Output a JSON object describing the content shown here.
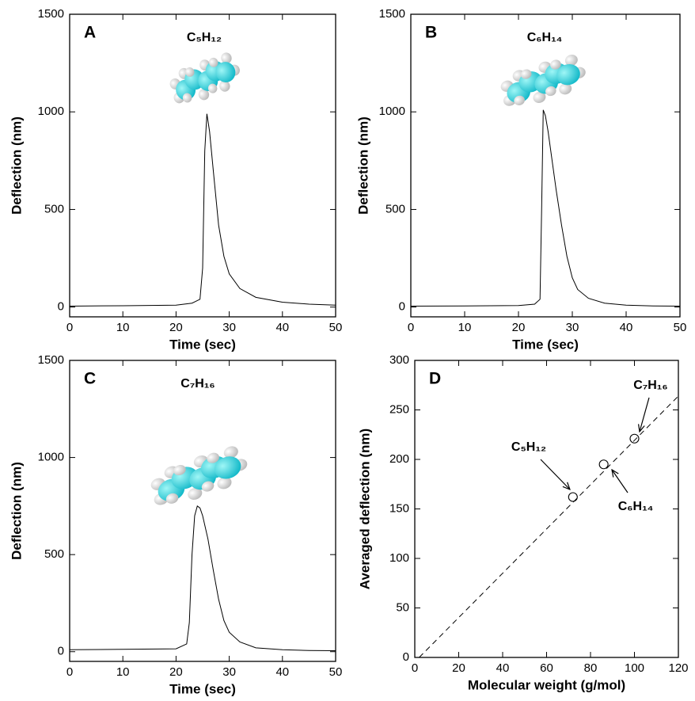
{
  "chart_data": [
    {
      "type": "line",
      "label": "A",
      "annotation": "C₅H₁₂",
      "xlabel": "Time (sec)",
      "ylabel": "Deflection (nm)",
      "color": "#000000",
      "x": [
        0,
        10,
        20,
        23,
        24.5,
        25,
        25.4,
        25.8,
        26.3,
        27,
        28,
        29,
        30,
        32,
        35,
        40,
        45,
        50
      ],
      "values": [
        5,
        7,
        10,
        20,
        40,
        200,
        800,
        990,
        900,
        700,
        420,
        260,
        170,
        95,
        50,
        25,
        15,
        10
      ],
      "xlim": [
        0,
        50
      ],
      "xticks": [
        0,
        10,
        20,
        30,
        40,
        50
      ],
      "ylim": [
        -50,
        1500
      ],
      "yticks": [
        0,
        500,
        1000,
        1500
      ]
    },
    {
      "type": "line",
      "label": "B",
      "annotation": "C₆H₁₄",
      "xlabel": "Time (sec)",
      "ylabel": "Deflection (nm)",
      "color": "#000000",
      "x": [
        0,
        10,
        20,
        23,
        24,
        24.3,
        24.6,
        25,
        25.5,
        26,
        27,
        28,
        29,
        30,
        31,
        33,
        36,
        40,
        45,
        50
      ],
      "values": [
        5,
        6,
        8,
        15,
        40,
        500,
        1010,
        980,
        900,
        800,
        600,
        420,
        260,
        150,
        90,
        45,
        20,
        10,
        6,
        5
      ],
      "xlim": [
        0,
        50
      ],
      "xticks": [
        0,
        10,
        20,
        30,
        40,
        50
      ],
      "ylim": [
        -50,
        1500
      ],
      "yticks": [
        0,
        500,
        1000,
        1500
      ]
    },
    {
      "type": "line",
      "label": "C",
      "annotation": "C₇H₁₆",
      "xlabel": "Time (sec)",
      "ylabel": "Deflection (nm)",
      "color": "#000000",
      "x": [
        0,
        10,
        20,
        22,
        22.5,
        23,
        23.5,
        24,
        24.5,
        25,
        26,
        27,
        28,
        29,
        30,
        32,
        35,
        40,
        45,
        50
      ],
      "values": [
        10,
        12,
        15,
        40,
        150,
        500,
        700,
        750,
        740,
        700,
        580,
        420,
        270,
        160,
        100,
        50,
        20,
        10,
        6,
        5
      ],
      "xlim": [
        0,
        50
      ],
      "xticks": [
        0,
        10,
        20,
        30,
        40,
        50
      ],
      "ylim": [
        -50,
        1500
      ],
      "yticks": [
        0,
        500,
        1000,
        1500
      ]
    },
    {
      "type": "scatter",
      "label": "D",
      "annotations": [
        "C₅H₁₂",
        "C₆H₁₄",
        "C₇H₁₆"
      ],
      "xlabel": "Molecular weight (g/mol)",
      "ylabel": "Averaged deflection (nm)",
      "color": "#000000",
      "x": [
        72,
        86,
        100
      ],
      "values": [
        162,
        195,
        221
      ],
      "fit_line": {
        "x": [
          2,
          120
        ],
        "values": [
          0,
          264
        ],
        "line_style": "dashed"
      },
      "xlim": [
        0,
        120
      ],
      "xticks": [
        0,
        20,
        40,
        60,
        80,
        100,
        120
      ],
      "ylim": [
        0,
        300
      ],
      "yticks": [
        0,
        50,
        100,
        150,
        200,
        250,
        300
      ]
    }
  ]
}
